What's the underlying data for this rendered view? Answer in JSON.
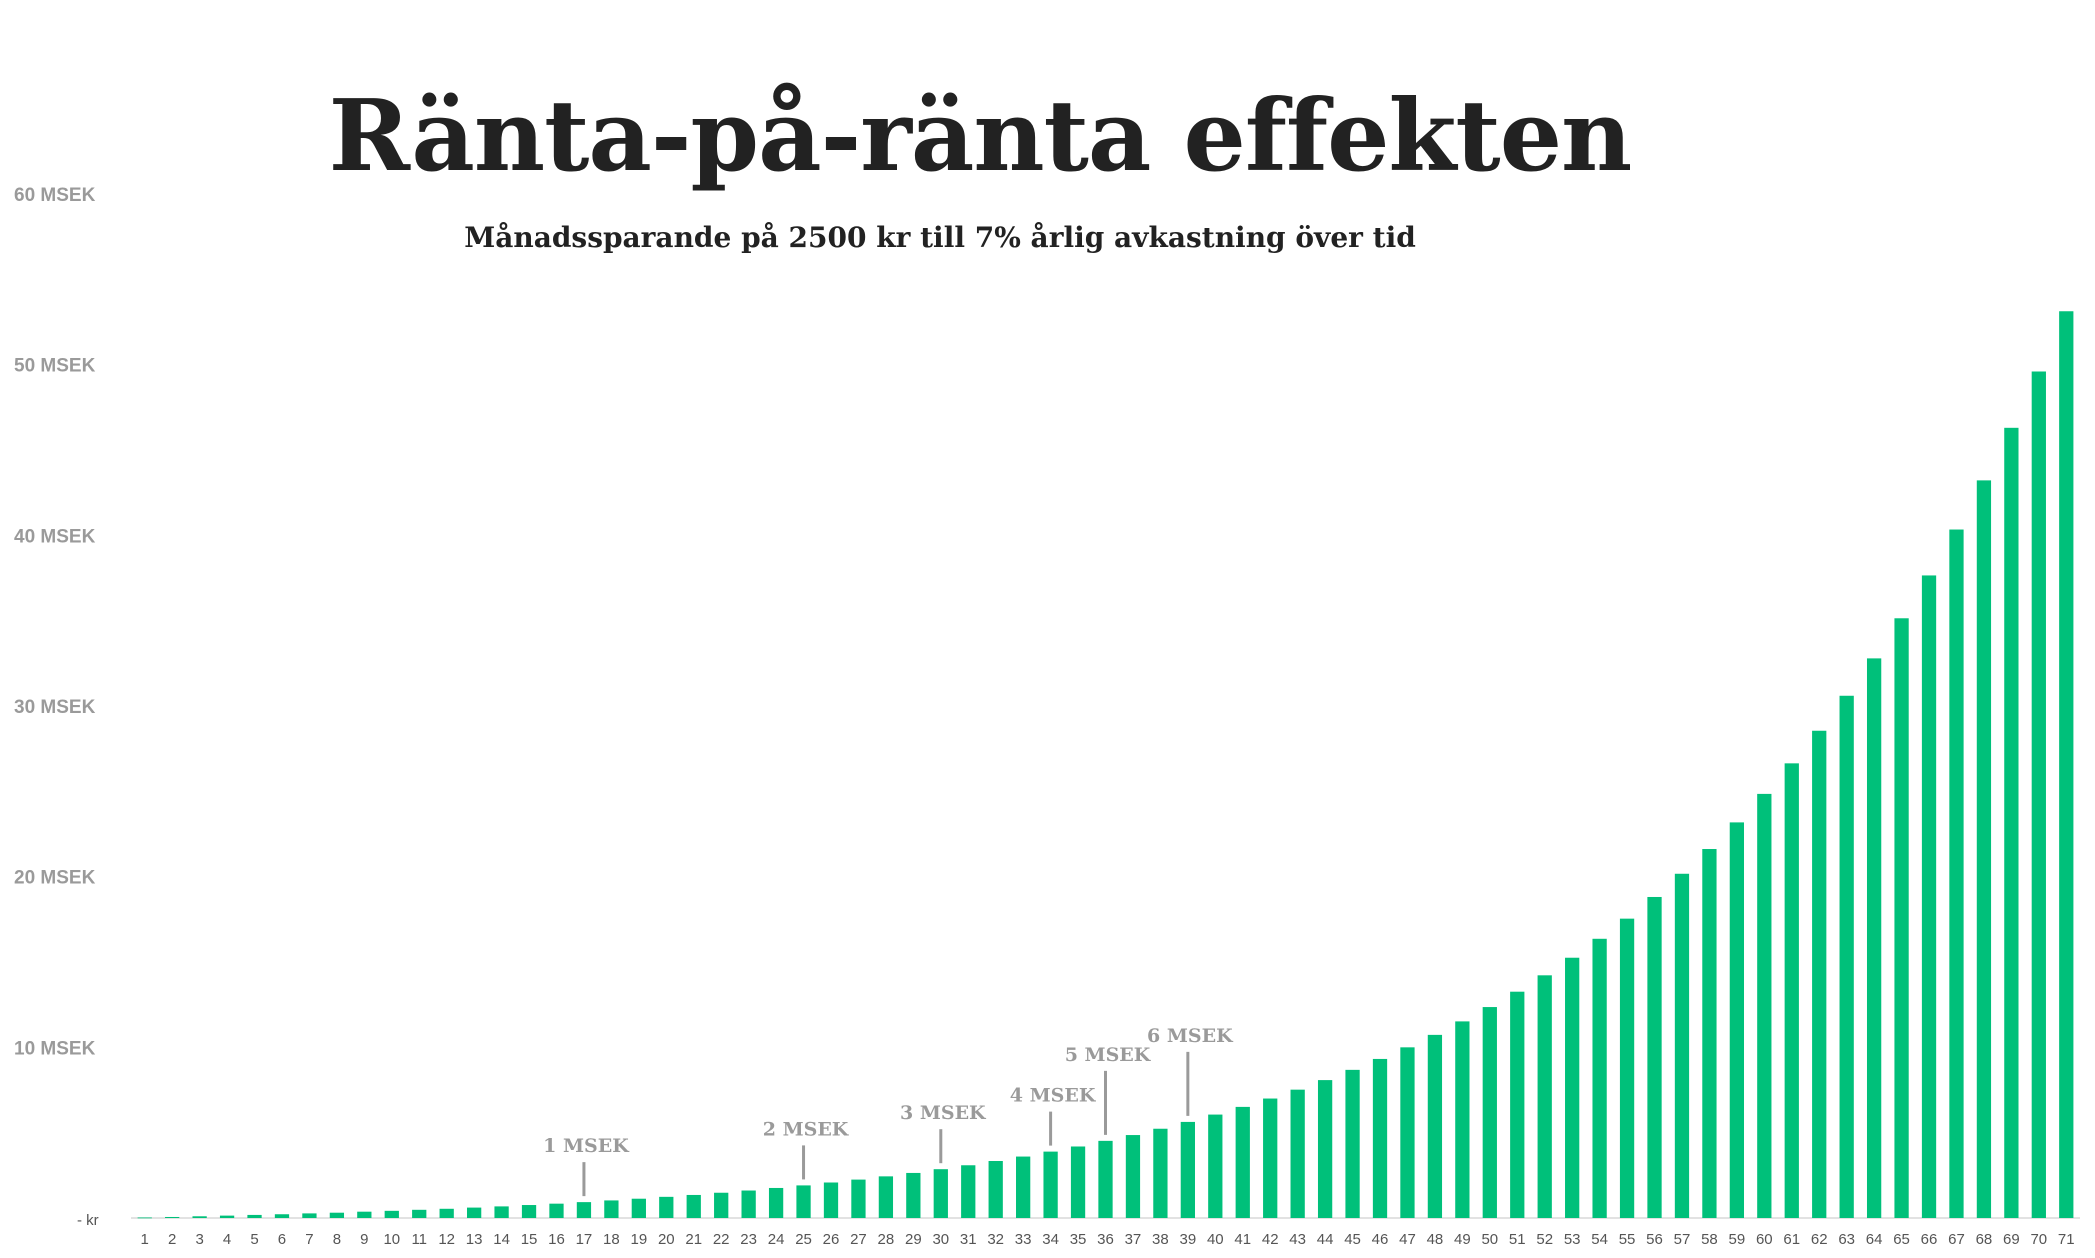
{
  "chart_data": {
    "type": "bar",
    "title": "Ränta-på-ränta effekten",
    "subtitle": "Månadssparande på 2500 kr till 7% årlig avkastning över tid",
    "xlabel": "",
    "ylabel": "",
    "ylim": [
      0,
      60
    ],
    "yticks": [
      {
        "value": 0,
        "label": "-   kr"
      },
      {
        "value": 10,
        "label": "10 MSEK"
      },
      {
        "value": 20,
        "label": "20 MSEK"
      },
      {
        "value": 30,
        "label": "30 MSEK"
      },
      {
        "value": 40,
        "label": "40 MSEK"
      },
      {
        "value": 50,
        "label": "50 MSEK"
      },
      {
        "value": 60,
        "label": "60 MSEK"
      }
    ],
    "grid": false,
    "legend": "none",
    "bar_color": "#00c07a",
    "annotation_color": "#9a9a9a",
    "categories": [
      "1",
      "2",
      "3",
      "4",
      "5",
      "6",
      "7",
      "8",
      "9",
      "10",
      "11",
      "12",
      "13",
      "14",
      "15",
      "16",
      "17",
      "18",
      "19",
      "20",
      "21",
      "22",
      "23",
      "24",
      "25",
      "26",
      "27",
      "28",
      "29",
      "30",
      "31",
      "32",
      "33",
      "34",
      "35",
      "36",
      "37",
      "38",
      "39",
      "40",
      "41",
      "42",
      "43",
      "44",
      "45",
      "46",
      "47",
      "48",
      "49",
      "50",
      "51",
      "52",
      "53",
      "54",
      "55",
      "56",
      "57",
      "58",
      "59",
      "60",
      "61",
      "62",
      "63",
      "64",
      "65",
      "66",
      "67",
      "68",
      "69",
      "70",
      "71"
    ],
    "values": [
      0.03,
      0.06,
      0.1,
      0.14,
      0.18,
      0.22,
      0.27,
      0.31,
      0.37,
      0.42,
      0.48,
      0.54,
      0.61,
      0.68,
      0.76,
      0.84,
      0.93,
      1.03,
      1.13,
      1.24,
      1.35,
      1.48,
      1.61,
      1.76,
      1.91,
      2.08,
      2.25,
      2.44,
      2.64,
      2.86,
      3.09,
      3.34,
      3.6,
      3.89,
      4.19,
      4.52,
      4.86,
      5.23,
      5.63,
      6.06,
      6.51,
      7.0,
      7.52,
      8.08,
      8.68,
      9.32,
      10.0,
      10.73,
      11.52,
      12.36,
      13.26,
      14.22,
      15.25,
      16.36,
      17.54,
      18.81,
      20.17,
      21.62,
      23.18,
      24.85,
      26.64,
      28.55,
      30.6,
      32.79,
      35.14,
      37.65,
      40.34,
      43.22,
      46.3,
      49.6,
      53.13
    ],
    "annotations": [
      {
        "label": "1 MSEK",
        "category": "17"
      },
      {
        "label": "2 MSEK",
        "category": "25"
      },
      {
        "label": "3 MSEK",
        "category": "30"
      },
      {
        "label": "4 MSEK",
        "category": "34"
      },
      {
        "label": "5 MSEK",
        "category": "36"
      },
      {
        "label": "6 MSEK",
        "category": "39"
      }
    ]
  }
}
